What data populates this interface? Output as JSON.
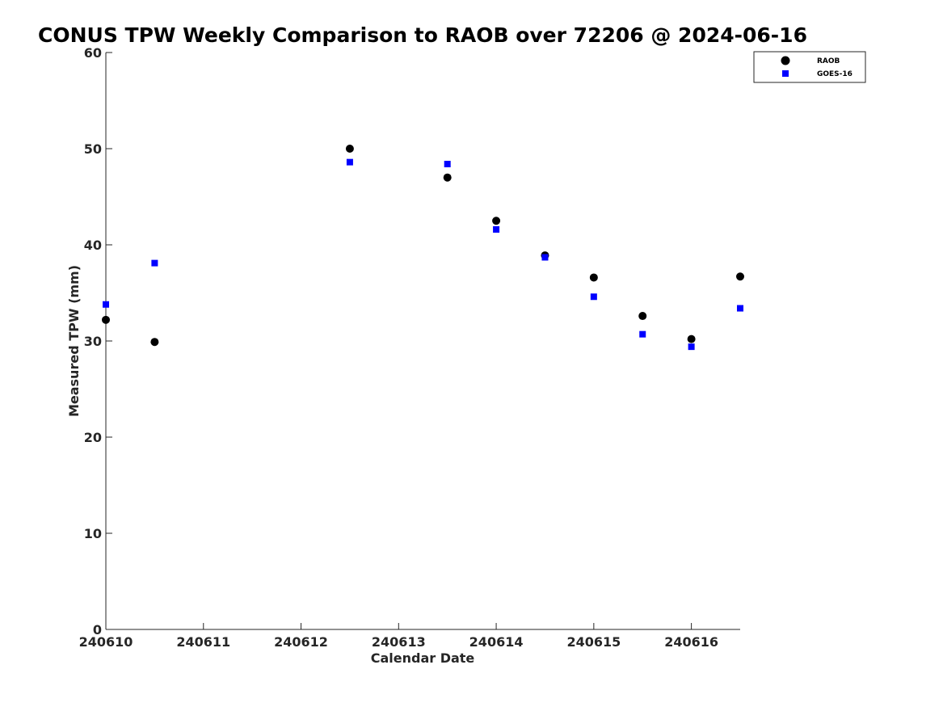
{
  "chart_data": {
    "type": "scatter",
    "title": "CONUS TPW Weekly Comparison to RAOB over 72206 @ 2024-06-16",
    "xlabel": "Calendar Date",
    "ylabel": "Measured TPW (mm)",
    "xlim": [
      240610,
      240616.5
    ],
    "ylim": [
      0,
      60
    ],
    "xticks": [
      240610,
      240611,
      240612,
      240613,
      240614,
      240615,
      240616
    ],
    "xtick_labels": [
      "240610",
      "240611",
      "240612",
      "240613",
      "240614",
      "240615",
      "240616"
    ],
    "yticks": [
      0,
      10,
      20,
      30,
      40,
      50,
      60
    ],
    "ytick_labels": [
      "0",
      "10",
      "20",
      "30",
      "40",
      "50",
      "60"
    ],
    "grid": false,
    "legend_position": "top-right",
    "series": [
      {
        "name": "RAOB",
        "marker": "circle",
        "color": "#000000",
        "x": [
          240610,
          240610.5,
          240612.5,
          240613.5,
          240614,
          240614.5,
          240615,
          240615.5,
          240616,
          240616.5
        ],
        "y": [
          32.2,
          29.9,
          50.0,
          47.0,
          42.5,
          38.9,
          36.6,
          32.6,
          30.2,
          36.7
        ]
      },
      {
        "name": "GOES-16",
        "marker": "square",
        "color": "#0000ff",
        "x": [
          240610,
          240610.5,
          240612.5,
          240613.5,
          240614,
          240614.5,
          240615,
          240615.5,
          240616,
          240616.5
        ],
        "y": [
          33.8,
          38.1,
          48.6,
          48.4,
          41.6,
          38.7,
          34.6,
          30.7,
          29.4,
          33.4
        ]
      }
    ]
  }
}
